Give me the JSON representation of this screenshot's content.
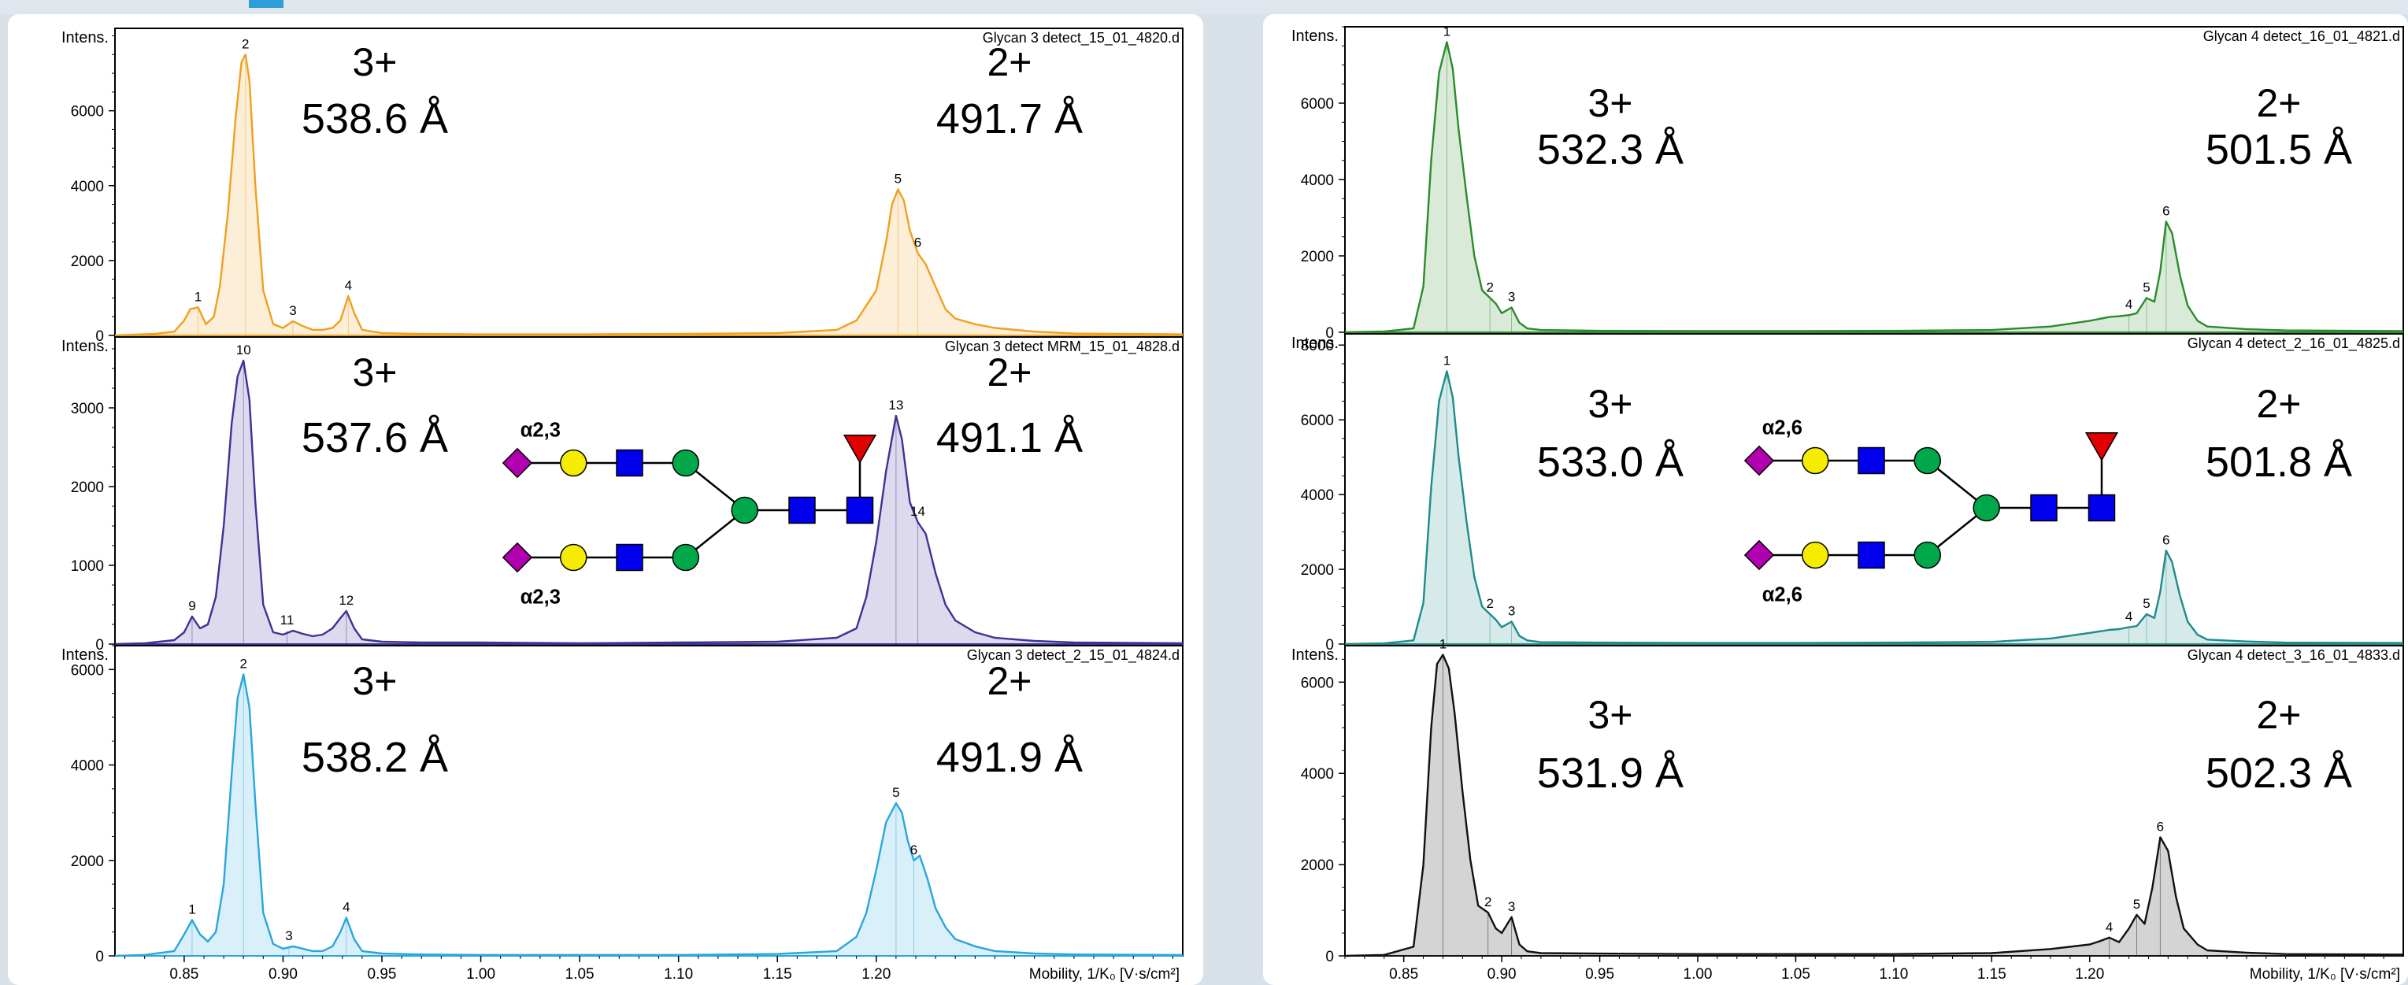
{
  "colors": {
    "orange": "#f0a020",
    "purple": "#3c3396",
    "light_blue": "#2aa6dc",
    "green": "#2a8c2a",
    "teal": "#1f8b8b",
    "black": "#111111",
    "sialic": "#b000b0",
    "galactose": "#f5ec00",
    "glcnac": "#0000ee",
    "mannose": "#00a84a",
    "fucose": "#e00000"
  },
  "chart_data": [
    {
      "type": "line",
      "file": "Glycan 3 detect_15_01_4820.d",
      "ylabel": "Intens.",
      "yticks": [
        0,
        2000,
        4000,
        6000
      ],
      "ylim": [
        0,
        8200
      ],
      "xlim": [
        0.815,
        1.355
      ],
      "color": "orange",
      "charge_left": "3+",
      "value_left": "538.6 Å",
      "charge_right": "2+",
      "value_right": "491.7 Å",
      "peaks": [
        {
          "label": "1",
          "x": 0.857,
          "y": 750
        },
        {
          "label": "2",
          "x": 0.881,
          "y": 7500
        },
        {
          "label": "3",
          "x": 0.905,
          "y": 380
        },
        {
          "label": "4",
          "x": 0.933,
          "y": 1050
        },
        {
          "label": "5",
          "x": 1.211,
          "y": 3900
        },
        {
          "label": "6",
          "x": 1.221,
          "y": 2200
        }
      ],
      "x": [
        0.815,
        0.825,
        0.835,
        0.845,
        0.85,
        0.853,
        0.857,
        0.861,
        0.865,
        0.868,
        0.872,
        0.876,
        0.879,
        0.881,
        0.883,
        0.886,
        0.89,
        0.895,
        0.9,
        0.905,
        0.91,
        0.915,
        0.92,
        0.925,
        0.929,
        0.933,
        0.936,
        0.94,
        0.95,
        0.97,
        1.0,
        1.05,
        1.1,
        1.15,
        1.18,
        1.19,
        1.2,
        1.205,
        1.208,
        1.211,
        1.214,
        1.217,
        1.221,
        1.225,
        1.23,
        1.235,
        1.24,
        1.25,
        1.26,
        1.28,
        1.3,
        1.355
      ],
      "y": [
        0,
        20,
        40,
        100,
        400,
        700,
        750,
        300,
        500,
        1300,
        3200,
        5800,
        7300,
        7500,
        6800,
        4000,
        1200,
        300,
        200,
        380,
        250,
        150,
        150,
        200,
        400,
        1050,
        600,
        150,
        60,
        40,
        30,
        30,
        40,
        60,
        150,
        400,
        1200,
        2500,
        3500,
        3900,
        3600,
        2800,
        2200,
        1900,
        1300,
        700,
        450,
        300,
        200,
        100,
        50,
        30
      ]
    },
    {
      "type": "line",
      "file": "Glycan 3 detect MRM_15_01_4828.d",
      "ylabel": "Intens.",
      "yticks": [
        0,
        1000,
        2000,
        3000
      ],
      "ylim": [
        0,
        3900
      ],
      "xlim": [
        0.815,
        1.355
      ],
      "color": "purple",
      "charge_left": "3+",
      "value_left": "537.6 Å",
      "charge_right": "2+",
      "value_right": "491.1 Å",
      "linkage_top": "α2,3",
      "linkage_bottom": "α2,3",
      "peaks": [
        {
          "label": "9",
          "x": 0.854,
          "y": 350
        },
        {
          "label": "10",
          "x": 0.88,
          "y": 3600
        },
        {
          "label": "11",
          "x": 0.902,
          "y": 170
        },
        {
          "label": "12",
          "x": 0.932,
          "y": 420
        },
        {
          "label": "13",
          "x": 1.21,
          "y": 2900
        },
        {
          "label": "14",
          "x": 1.221,
          "y": 1550
        }
      ],
      "x": [
        0.815,
        0.83,
        0.845,
        0.85,
        0.854,
        0.858,
        0.862,
        0.866,
        0.87,
        0.874,
        0.877,
        0.88,
        0.883,
        0.886,
        0.89,
        0.895,
        0.9,
        0.905,
        0.91,
        0.915,
        0.92,
        0.925,
        0.929,
        0.932,
        0.936,
        0.94,
        0.95,
        0.97,
        1.0,
        1.05,
        1.1,
        1.15,
        1.18,
        1.19,
        1.195,
        1.2,
        1.205,
        1.21,
        1.213,
        1.217,
        1.221,
        1.225,
        1.23,
        1.235,
        1.24,
        1.25,
        1.26,
        1.28,
        1.3,
        1.355
      ],
      "y": [
        0,
        10,
        50,
        150,
        350,
        200,
        250,
        600,
        1500,
        2800,
        3400,
        3600,
        3100,
        1800,
        500,
        150,
        120,
        170,
        130,
        100,
        120,
        200,
        330,
        420,
        200,
        60,
        30,
        20,
        20,
        10,
        20,
        30,
        80,
        200,
        600,
        1300,
        2200,
        2900,
        2600,
        1800,
        1550,
        1400,
        900,
        500,
        300,
        150,
        80,
        40,
        20,
        10
      ]
    },
    {
      "type": "line",
      "file": "Glycan 3 detect_2_15_01_4824.d",
      "ylabel": "Intens.",
      "yticks": [
        0,
        2000,
        4000,
        6000
      ],
      "ylim": [
        0,
        6500
      ],
      "xlim": [
        0.815,
        1.355
      ],
      "xticks": [
        "0.85",
        "0.90",
        "0.95",
        "1.00",
        "1.05",
        "1.10",
        "1.15",
        "1.20"
      ],
      "xlabel": "Mobility, 1/K₀ [V·s/cm²]",
      "color": "light_blue",
      "charge_left": "3+",
      "value_left": "538.2 Å",
      "charge_right": "2+",
      "value_right": "491.9 Å",
      "peaks": [
        {
          "label": "1",
          "x": 0.854,
          "y": 750
        },
        {
          "label": "2",
          "x": 0.88,
          "y": 5900
        },
        {
          "label": "3",
          "x": 0.903,
          "y": 200
        },
        {
          "label": "4",
          "x": 0.932,
          "y": 800
        },
        {
          "label": "5",
          "x": 1.21,
          "y": 3200
        },
        {
          "label": "6",
          "x": 1.219,
          "y": 2000
        }
      ],
      "x": [
        0.815,
        0.83,
        0.845,
        0.85,
        0.854,
        0.858,
        0.862,
        0.866,
        0.87,
        0.874,
        0.877,
        0.88,
        0.883,
        0.886,
        0.89,
        0.895,
        0.9,
        0.905,
        0.91,
        0.915,
        0.92,
        0.925,
        0.929,
        0.932,
        0.936,
        0.94,
        0.95,
        0.97,
        1.0,
        1.05,
        1.1,
        1.15,
        1.18,
        1.19,
        1.195,
        1.2,
        1.205,
        1.21,
        1.213,
        1.216,
        1.219,
        1.222,
        1.226,
        1.23,
        1.235,
        1.24,
        1.25,
        1.26,
        1.28,
        1.3,
        1.355
      ],
      "y": [
        0,
        20,
        100,
        450,
        750,
        450,
        300,
        500,
        1500,
        3800,
        5400,
        5900,
        5200,
        3200,
        900,
        250,
        150,
        200,
        150,
        100,
        100,
        200,
        500,
        800,
        350,
        100,
        50,
        30,
        20,
        20,
        20,
        40,
        100,
        400,
        900,
        1800,
        2800,
        3200,
        3000,
        2400,
        2000,
        2100,
        1600,
        1000,
        600,
        350,
        200,
        100,
        50,
        30,
        20
      ]
    },
    {
      "type": "line",
      "file": "Glycan 4 detect_16_01_4821.d",
      "ylabel": "Intens.",
      "yticks": [
        0,
        2000,
        4000,
        6000
      ],
      "ylim": [
        0,
        8000
      ],
      "xlim": [
        0.82,
        1.36
      ],
      "color": "green",
      "charge_left": "3+",
      "value_left": "532.3 Å",
      "charge_right": "2+",
      "value_right": "501.5 Å",
      "peaks": [
        {
          "label": "1",
          "x": 0.872,
          "y": 7600
        },
        {
          "label": "2",
          "x": 0.894,
          "y": 900
        },
        {
          "label": "3",
          "x": 0.905,
          "y": 650
        },
        {
          "label": "4",
          "x": 1.22,
          "y": 450
        },
        {
          "label": "5",
          "x": 1.229,
          "y": 900
        },
        {
          "label": "6",
          "x": 1.239,
          "y": 2900
        }
      ],
      "x": [
        0.82,
        0.84,
        0.855,
        0.86,
        0.864,
        0.868,
        0.872,
        0.875,
        0.878,
        0.882,
        0.886,
        0.89,
        0.894,
        0.897,
        0.9,
        0.905,
        0.909,
        0.913,
        0.92,
        0.95,
        1.0,
        1.05,
        1.1,
        1.15,
        1.18,
        1.2,
        1.21,
        1.215,
        1.22,
        1.224,
        1.229,
        1.233,
        1.236,
        1.239,
        1.242,
        1.246,
        1.25,
        1.255,
        1.26,
        1.28,
        1.3,
        1.36
      ],
      "y": [
        0,
        20,
        100,
        1200,
        4500,
        6800,
        7600,
        6900,
        5300,
        3600,
        2000,
        1100,
        900,
        750,
        500,
        650,
        250,
        100,
        60,
        40,
        30,
        30,
        40,
        60,
        150,
        300,
        400,
        420,
        450,
        500,
        900,
        800,
        1600,
        2900,
        2600,
        1500,
        700,
        300,
        150,
        80,
        50,
        30
      ]
    },
    {
      "type": "line",
      "file": "Glycan 4 detect_2_16_01_4825.d",
      "ylabel": "Intens.",
      "yticks": [
        0,
        2000,
        4000,
        6000,
        8000
      ],
      "ylim": [
        0,
        8300
      ],
      "xlim": [
        0.82,
        1.36
      ],
      "color": "teal",
      "charge_left": "3+",
      "value_left": "533.0 Å",
      "charge_right": "2+",
      "value_right": "501.8 Å",
      "linkage_top": "α2,6",
      "linkage_bottom": "α2,6",
      "peaks": [
        {
          "label": "1",
          "x": 0.872,
          "y": 7300
        },
        {
          "label": "2",
          "x": 0.894,
          "y": 800
        },
        {
          "label": "3",
          "x": 0.905,
          "y": 600
        },
        {
          "label": "4",
          "x": 1.22,
          "y": 450
        },
        {
          "label": "5",
          "x": 1.229,
          "y": 800
        },
        {
          "label": "6",
          "x": 1.239,
          "y": 2500
        }
      ],
      "x": [
        0.82,
        0.84,
        0.855,
        0.86,
        0.864,
        0.868,
        0.872,
        0.875,
        0.878,
        0.882,
        0.886,
        0.89,
        0.894,
        0.897,
        0.9,
        0.905,
        0.909,
        0.913,
        0.92,
        0.95,
        1.0,
        1.05,
        1.1,
        1.15,
        1.18,
        1.2,
        1.21,
        1.215,
        1.22,
        1.224,
        1.229,
        1.233,
        1.236,
        1.239,
        1.242,
        1.246,
        1.25,
        1.255,
        1.26,
        1.28,
        1.3,
        1.36
      ],
      "y": [
        0,
        20,
        100,
        1100,
        4200,
        6500,
        7300,
        6600,
        5000,
        3300,
        1800,
        1000,
        800,
        650,
        450,
        600,
        220,
        100,
        50,
        40,
        30,
        30,
        40,
        60,
        150,
        300,
        380,
        400,
        450,
        480,
        800,
        700,
        1400,
        2500,
        2200,
        1300,
        600,
        250,
        120,
        70,
        40,
        30
      ]
    },
    {
      "type": "line",
      "file": "Glycan 4 detect_3_16_01_4833.d",
      "ylabel": "Intens.",
      "yticks": [
        0,
        2000,
        4000,
        6000
      ],
      "ylim": [
        0,
        6800
      ],
      "xlim": [
        0.82,
        1.36
      ],
      "xticks": [
        "0.85",
        "0.90",
        "0.95",
        "1.00",
        "1.05",
        "1.10",
        "1.15",
        "1.20"
      ],
      "xlabel": "Mobility, 1/K₀ [V·s/cm²]",
      "color": "black",
      "charge_left": "3+",
      "value_left": "531.9 Å",
      "charge_right": "2+",
      "value_right": "502.3 Å",
      "peaks": [
        {
          "label": "1",
          "x": 0.87,
          "y": 6600
        },
        {
          "label": "2",
          "x": 0.893,
          "y": 950
        },
        {
          "label": "3",
          "x": 0.905,
          "y": 850
        },
        {
          "label": "4",
          "x": 1.21,
          "y": 400
        },
        {
          "label": "5",
          "x": 1.224,
          "y": 900
        },
        {
          "label": "6",
          "x": 1.236,
          "y": 2600
        }
      ],
      "x": [
        0.82,
        0.84,
        0.855,
        0.86,
        0.864,
        0.867,
        0.87,
        0.873,
        0.876,
        0.88,
        0.884,
        0.888,
        0.893,
        0.897,
        0.9,
        0.905,
        0.909,
        0.913,
        0.92,
        0.95,
        1.0,
        1.05,
        1.1,
        1.15,
        1.18,
        1.2,
        1.205,
        1.21,
        1.215,
        1.22,
        1.224,
        1.228,
        1.232,
        1.236,
        1.24,
        1.244,
        1.248,
        1.255,
        1.26,
        1.28,
        1.3,
        1.36
      ],
      "y": [
        0,
        20,
        200,
        2000,
        5000,
        6400,
        6600,
        6300,
        5300,
        3600,
        2100,
        1100,
        950,
        600,
        500,
        850,
        250,
        100,
        60,
        50,
        40,
        40,
        40,
        60,
        150,
        250,
        320,
        400,
        300,
        600,
        900,
        700,
        1500,
        2600,
        2300,
        1300,
        600,
        250,
        120,
        70,
        40,
        30
      ]
    }
  ]
}
